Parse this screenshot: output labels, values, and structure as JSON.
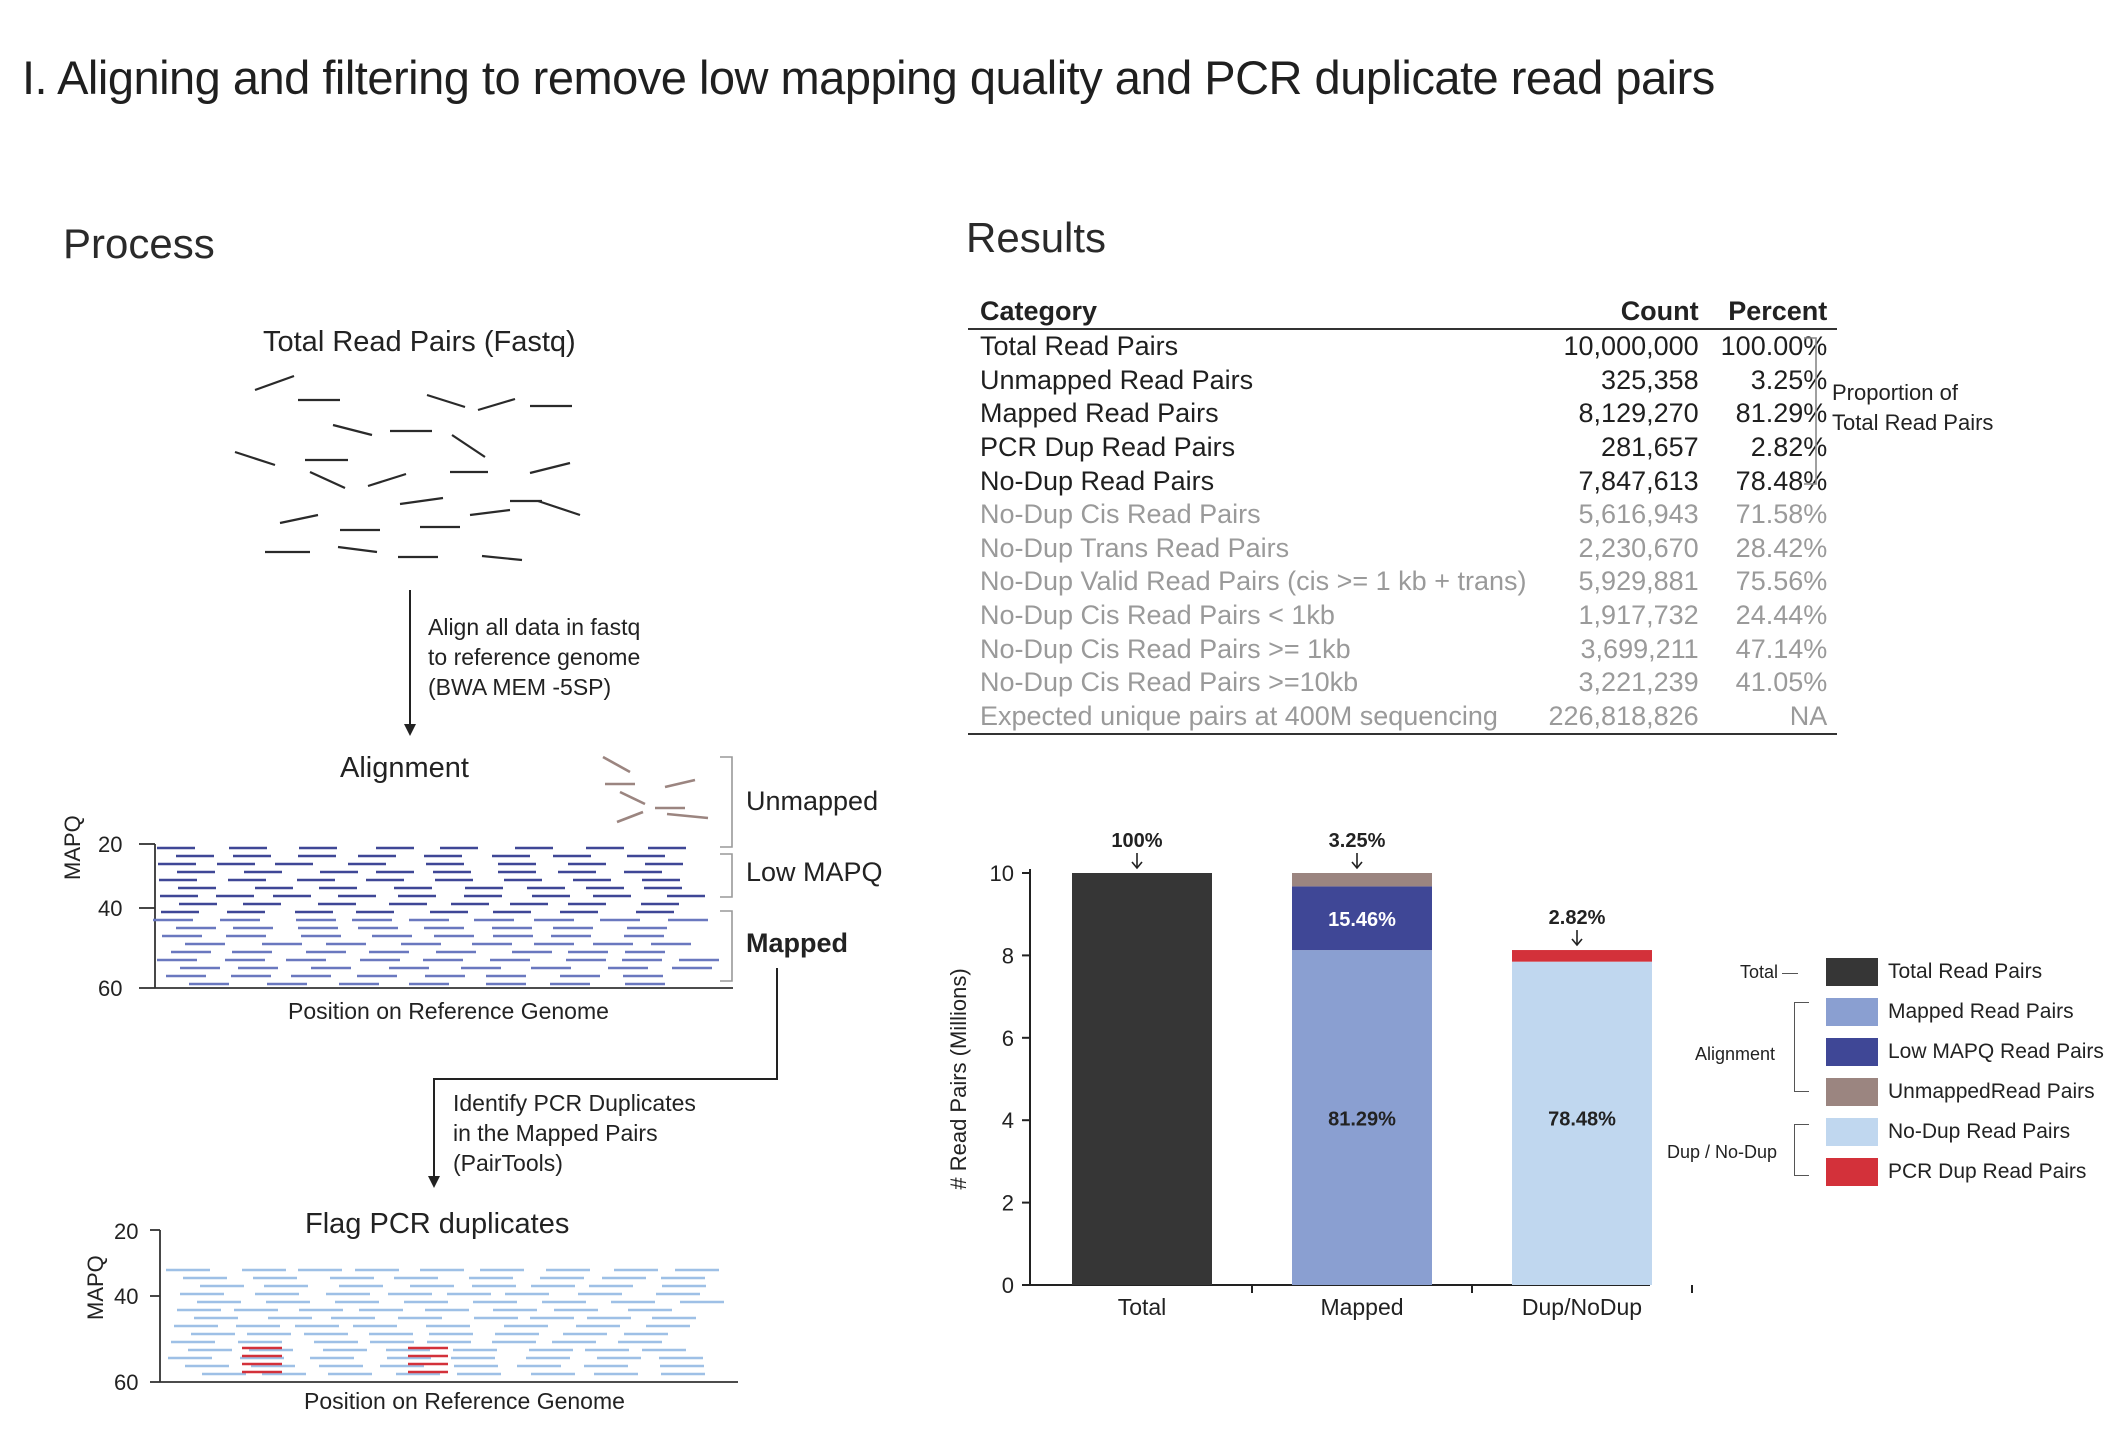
{
  "title": "I. Aligning and filtering to remove low mapping quality and PCR duplicate read pairs",
  "process": {
    "heading": "Process",
    "total_label": "Total Read Pairs (Fastq)",
    "align_step": [
      "Align all data in fastq",
      "to reference genome",
      "(BWA MEM -5SP)"
    ],
    "alignment_label": "Alignment",
    "unmapped_label": "Unmapped",
    "lowmapq_label": "Low MAPQ",
    "mapped_label": "Mapped",
    "mapq_axis": "MAPQ",
    "mapq_ticks": [
      "20",
      "40",
      "60"
    ],
    "position_label": "Position on Reference Genome",
    "pcr_step": [
      "Identify PCR Duplicates",
      "in the Mapped Pairs",
      "(PairTools)"
    ],
    "flag_label": "Flag PCR duplicates",
    "colors": {
      "read": "#2a2a2a",
      "unmapped": "#9b8580",
      "lowmapq": "#3f4796",
      "mapped": "#6a78bf",
      "nodup": "#9ec0e6",
      "dup": "#d3313a"
    }
  },
  "results": {
    "heading": "Results",
    "columns": [
      "Category",
      "Count",
      "Percent"
    ],
    "rows": [
      {
        "category": "Total Read Pairs",
        "count": "10,000,000",
        "percent": "100.00%",
        "style": "main"
      },
      {
        "category": "Unmapped Read Pairs",
        "count": "325,358",
        "percent": "3.25%",
        "style": "main"
      },
      {
        "category": "Mapped Read Pairs",
        "count": "8,129,270",
        "percent": "81.29%",
        "style": "main"
      },
      {
        "category": "PCR Dup Read Pairs",
        "count": "281,657",
        "percent": "2.82%",
        "style": "main"
      },
      {
        "category": "No-Dup Read Pairs",
        "count": "7,847,613",
        "percent": "78.48%",
        "style": "main"
      },
      {
        "category": "No-Dup Cis Read Pairs",
        "count": "5,616,943",
        "percent": "71.58%",
        "style": "sub"
      },
      {
        "category": "No-Dup Trans Read Pairs",
        "count": "2,230,670",
        "percent": "28.42%",
        "style": "sub"
      },
      {
        "category": "No-Dup Valid Read Pairs (cis >= 1 kb + trans)",
        "count": "5,929,881",
        "percent": "75.56%",
        "style": "sub"
      },
      {
        "category": "No-Dup Cis Read Pairs < 1kb",
        "count": "1,917,732",
        "percent": "24.44%",
        "style": "sub"
      },
      {
        "category": "No-Dup Cis Read Pairs >= 1kb",
        "count": "3,699,211",
        "percent": "47.14%",
        "style": "sub"
      },
      {
        "category": "No-Dup Cis Read Pairs >=10kb",
        "count": "3,221,239",
        "percent": "41.05%",
        "style": "sub"
      },
      {
        "category": "Expected unique pairs at 400M sequencing",
        "count": "226,818,826",
        "percent": "NA",
        "style": "sub"
      }
    ],
    "bracket_note": [
      "Proportion of",
      "Total Read Pairs"
    ]
  },
  "chart_data": {
    "type": "bar",
    "stacked": true,
    "categories": [
      "Total",
      "Mapped",
      "Dup/NoDup"
    ],
    "ylabel": "# Read Pairs (Millions)",
    "ylim": [
      0,
      10
    ],
    "yticks": [
      0,
      2,
      4,
      6,
      8,
      10
    ],
    "series": [
      {
        "name": "Total Read Pairs",
        "color": "#363636",
        "values": [
          10.0,
          0,
          0
        ]
      },
      {
        "name": "Mapped Read Pairs",
        "color": "#8a9fd1",
        "values": [
          0,
          8.129,
          0
        ]
      },
      {
        "name": "Low MAPQ Read Pairs",
        "color": "#3f4796",
        "values": [
          0,
          1.546,
          0
        ]
      },
      {
        "name": "UnmappedRead Pairs",
        "color": "#9b8580",
        "values": [
          0,
          0.325,
          0
        ]
      },
      {
        "name": "No-Dup Read Pairs",
        "color": "#c0d7ef",
        "values": [
          0,
          0,
          7.848
        ]
      },
      {
        "name": "PCR Dup Read Pairs",
        "color": "#d3313a",
        "values": [
          0,
          0,
          0.282
        ]
      }
    ],
    "top_annotations": [
      "100%",
      "3.25%",
      "2.82%"
    ],
    "inside_labels": {
      "lowmapq": "15.46%",
      "mapped": "81.29%",
      "nodup": "78.48%"
    },
    "legend_groups": [
      {
        "group": "Total",
        "items": [
          "Total Read Pairs"
        ]
      },
      {
        "group": "Alignment",
        "items": [
          "Mapped Read Pairs",
          "Low MAPQ Read Pairs",
          "UnmappedRead Pairs"
        ]
      },
      {
        "group": "Dup / No-Dup",
        "items": [
          "No-Dup Read Pairs",
          "PCR Dup Read Pairs"
        ]
      }
    ]
  }
}
